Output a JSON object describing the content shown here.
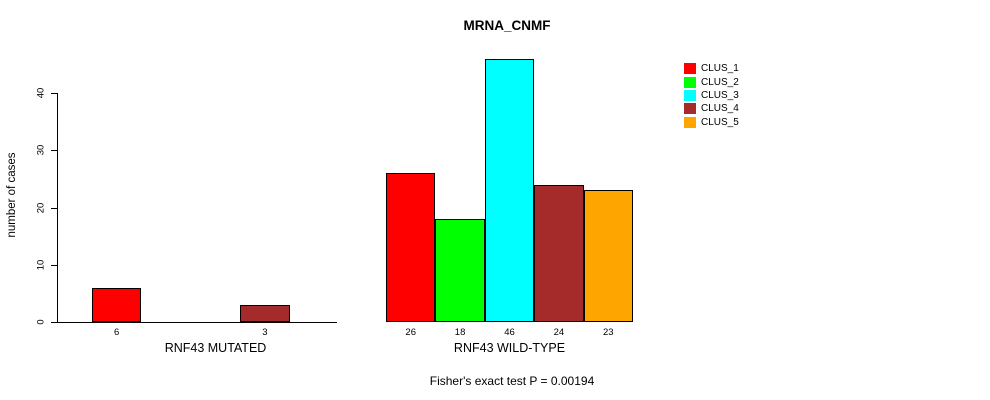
{
  "chart_data": {
    "type": "bar",
    "title": "MRNA_CNMF",
    "ylabel": "number of cases",
    "xlabel": "",
    "yticks": [
      0,
      10,
      20,
      30,
      40
    ],
    "ylim": [
      0,
      46
    ],
    "grid": false,
    "legend_position": "top-right",
    "series": [
      "CLUS_1",
      "CLUS_2",
      "CLUS_3",
      "CLUS_4",
      "CLUS_5"
    ],
    "colors": [
      "#ff0000",
      "#00ff00",
      "#00ffff",
      "#a52a2a",
      "#ffa500"
    ],
    "groups": [
      {
        "label": "RNF43 MUTATED",
        "values": [
          6,
          0,
          0,
          3,
          0
        ]
      },
      {
        "label": "RNF43 WILD-TYPE",
        "values": [
          26,
          18,
          46,
          24,
          23
        ]
      }
    ],
    "annotation": "Fisher's exact test P = 0.00194"
  }
}
